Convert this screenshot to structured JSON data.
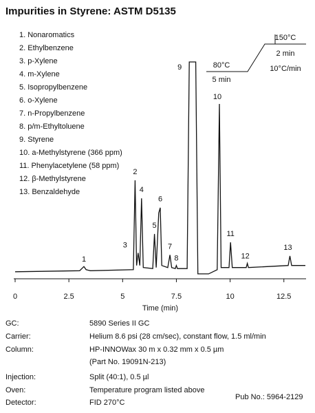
{
  "chart_data": {
    "type": "line",
    "title": "Impurities in Styrene: ASTM D5135",
    "compounds": [
      "1. Nonaromatics",
      "2. Ethylbenzene",
      "3. p-Xylene",
      "4. m-Xylene",
      "5. Isopropylbenzene",
      "6. o-Xylene",
      "7. n-Propylbenzene",
      "8. p/m-Ethyltoluene",
      "9. Styrene",
      "10. a-Methylstyrene (366 ppm)",
      "11. Phenylacetylene (58 ppm)",
      "12. β-Methylstyrene",
      "13. Benzaldehyde"
    ],
    "peak_labels": [
      "1",
      "2",
      "3",
      "4",
      "5",
      "6",
      "7",
      "8",
      "9",
      "10",
      "11",
      "12",
      "13"
    ],
    "x_label": "Time (min)",
    "xlim": [
      0,
      13.5
    ],
    "xticks": [
      0,
      2.5,
      5,
      7.5,
      10,
      12.5
    ],
    "ylim": [
      -4,
      100
    ],
    "series": [
      {
        "color": "#111111",
        "x": [
          0,
          3.0,
          3.15,
          3.2,
          3.3,
          3.5,
          5.5,
          5.58,
          5.65,
          5.72,
          5.8,
          5.88,
          5.96,
          6.4,
          6.48,
          6.56,
          6.68,
          6.75,
          6.82,
          7.1,
          7.2,
          7.28,
          7.45,
          7.5,
          7.55,
          8.0,
          8.1,
          8.4,
          8.5,
          9.0,
          9.4,
          9.5,
          9.58,
          9.95,
          10.02,
          10.1,
          10.75,
          10.8,
          10.85,
          12.7,
          12.78,
          12.86,
          13.5
        ],
        "values": [
          0,
          0.5,
          2,
          2.5,
          1,
          0.5,
          1,
          43.6,
          3,
          9,
          3,
          35,
          2,
          1.5,
          18,
          2,
          28,
          30.5,
          3,
          2,
          8,
          2,
          1.5,
          3,
          1.5,
          1.5,
          100,
          100,
          -1,
          -1,
          1,
          80,
          2,
          2,
          14,
          2,
          2,
          4,
          2,
          3,
          7.5,
          3,
          3
        ]
      }
    ],
    "temperature_program": {
      "initial_temp": "80°C",
      "initial_hold": "5 min",
      "final_temp": "150°C",
      "final_hold": "2 min",
      "rate": "10°C/min"
    },
    "conditions": [
      [
        "GC:",
        "5890 Series II GC"
      ],
      [
        "Carrier:",
        "Helium 8.6 psi (28 cm/sec), constant flow, 1.5 ml/min"
      ],
      [
        "Column:",
        "HP-INNOWax 30 m x 0.32 mm x 0.5 µm"
      ],
      [
        "",
        "(Part No. 19091N-213)"
      ],
      [
        "Injection:",
        "Split (40:1), 0.5 µl"
      ],
      [
        "Oven:",
        "Temperature program listed above"
      ],
      [
        "Detector:",
        "FID 270°C"
      ]
    ],
    "pub_no": "Pub No.: 5964-2129"
  }
}
